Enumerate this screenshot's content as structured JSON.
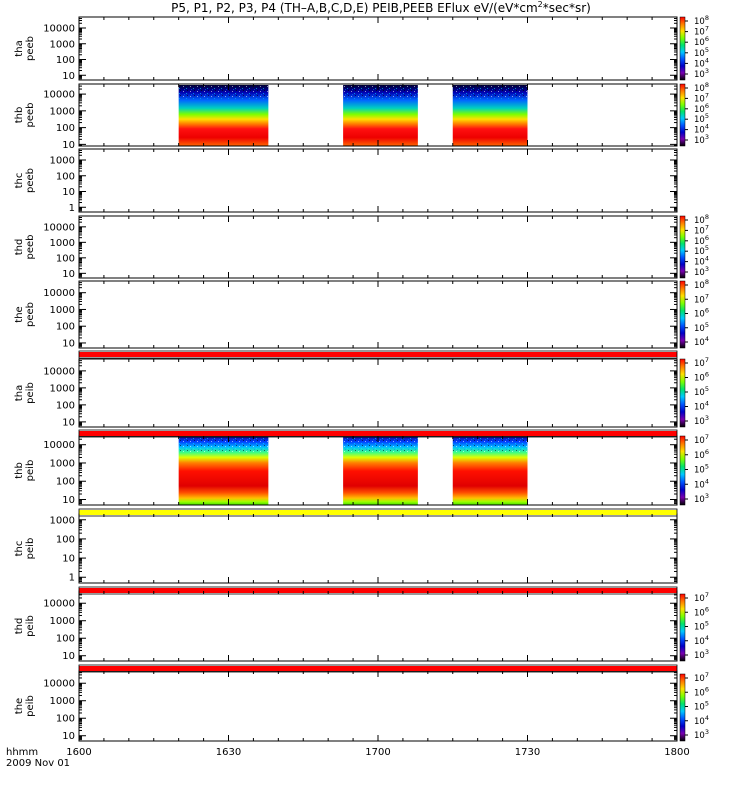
{
  "chart_data": {
    "type": "heatmap",
    "title_parts": [
      "P5, P1, P2, P3, P4 (TH–A,B,C,D,E) PEIB,PEEB EFlux eV/(eV*cm",
      "2",
      "*sec*sr)"
    ],
    "x_axis": {
      "label": "hhmm",
      "date": "2009 Nov 01",
      "tick_labels": [
        "1600",
        "1630",
        "1700",
        "1730",
        "1800"
      ],
      "range": [
        "16:00",
        "18:00"
      ]
    },
    "y_scale": "log",
    "colorscale": "rainbow",
    "data_intervals": [
      [
        "16:20",
        "16:38"
      ],
      [
        "16:53",
        "17:08"
      ],
      [
        "17:15",
        "17:30"
      ]
    ],
    "panels": [
      {
        "name": "tha peeb",
        "label_line1": "tha",
        "label_line2": "peeb",
        "y_ticks": [
          "10",
          "100",
          "1000",
          "10000"
        ],
        "ylim": [
          5,
          50000
        ],
        "colorbar": [
          "103",
          "104",
          "105",
          "106",
          "107",
          "108"
        ],
        "has_data": false
      },
      {
        "name": "thb peeb",
        "label_line1": "thb",
        "label_line2": "peeb",
        "y_ticks": [
          "10",
          "100",
          "1000",
          "10000"
        ],
        "ylim": [
          8,
          40000
        ],
        "colorbar": [
          "103",
          "104",
          "105",
          "106",
          "107",
          "108"
        ],
        "has_data": true
      },
      {
        "name": "thc peeb",
        "label_line1": "thc",
        "label_line2": "peeb",
        "y_ticks": [
          "1",
          "10",
          "100",
          "1000"
        ],
        "ylim": [
          0.5,
          5000
        ],
        "colorbar": [],
        "has_data": false
      },
      {
        "name": "thd peeb",
        "label_line1": "thd",
        "label_line2": "peeb",
        "y_ticks": [
          "10",
          "100",
          "1000",
          "10000"
        ],
        "ylim": [
          5,
          50000
        ],
        "colorbar": [
          "103",
          "104",
          "105",
          "106",
          "107",
          "108"
        ],
        "has_data": false
      },
      {
        "name": "the peeb",
        "label_line1": "the",
        "label_line2": "peeb",
        "y_ticks": [
          "10",
          "100",
          "1000",
          "10000"
        ],
        "ylim": [
          5,
          50000
        ],
        "colorbar": [
          "104",
          "105",
          "106",
          "107",
          "108"
        ],
        "has_data": false
      },
      {
        "name": "tha peib",
        "label_line1": "tha",
        "label_line2": "peib",
        "y_ticks": [
          "10",
          "100",
          "1000",
          "10000"
        ],
        "ylim": [
          5,
          50000
        ],
        "colorbar": [
          "103",
          "104",
          "105",
          "106",
          "107"
        ],
        "has_data": false
      },
      {
        "name": "thb peib",
        "label_line1": "thb",
        "label_line2": "peib",
        "y_ticks": [
          "10",
          "100",
          "1000",
          "10000"
        ],
        "ylim": [
          5,
          30000
        ],
        "colorbar": [
          "103",
          "104",
          "105",
          "106",
          "107"
        ],
        "has_data": true
      },
      {
        "name": "thc peib",
        "label_line1": "thc",
        "label_line2": "peib",
        "y_ticks": [
          "1",
          "10",
          "100",
          "1000"
        ],
        "ylim": [
          0.5,
          2000
        ],
        "colorbar": [],
        "has_data": false
      },
      {
        "name": "thd peib",
        "label_line1": "thd",
        "label_line2": "peib",
        "y_ticks": [
          "10",
          "100",
          "1000",
          "10000"
        ],
        "ylim": [
          5,
          50000
        ],
        "colorbar": [
          "103",
          "104",
          "105",
          "106",
          "107"
        ],
        "has_data": false
      },
      {
        "name": "the peib",
        "label_line1": "the",
        "label_line2": "peib",
        "y_ticks": [
          "10",
          "100",
          "1000",
          "10000"
        ],
        "ylim": [
          5,
          50000
        ],
        "colorbar": [
          "103",
          "104",
          "105",
          "106",
          "107"
        ],
        "has_data": false
      }
    ]
  }
}
